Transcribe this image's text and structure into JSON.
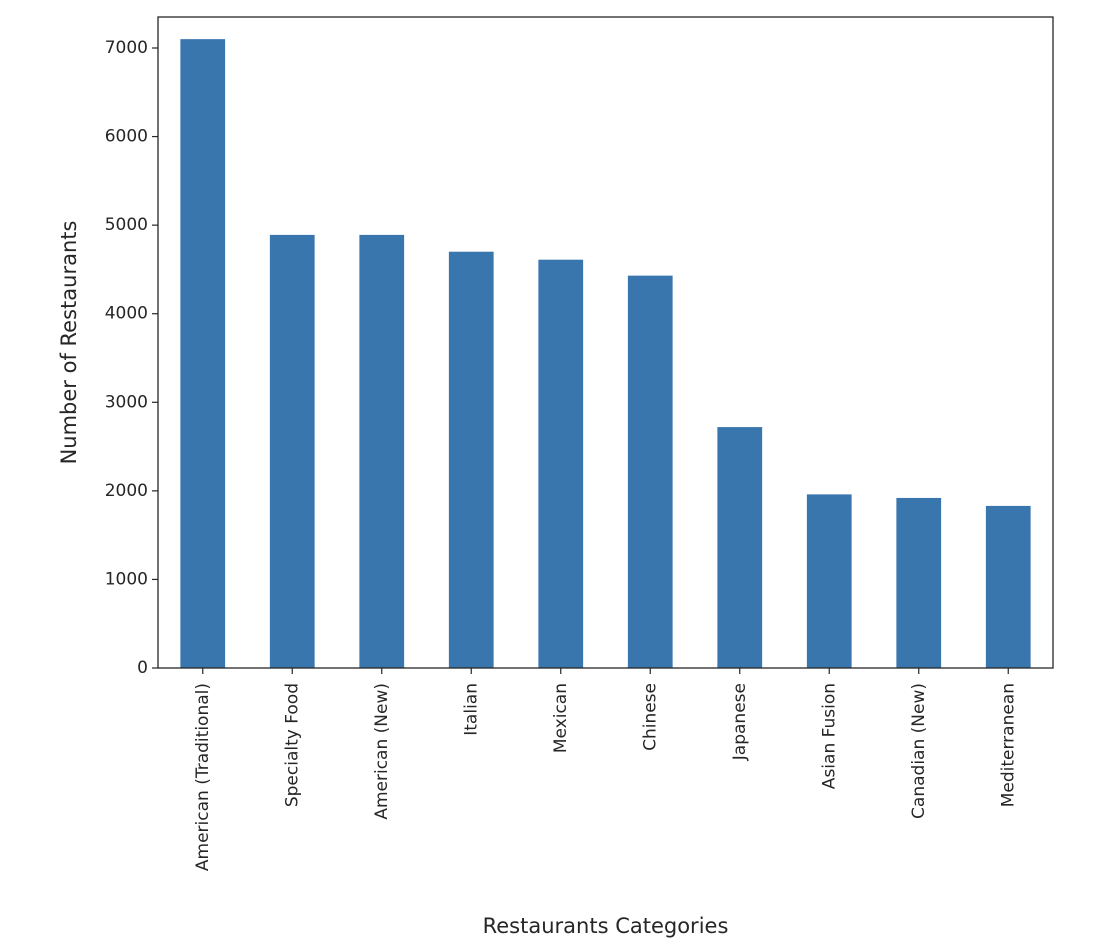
{
  "chart_data": {
    "type": "bar",
    "title": "",
    "xlabel": "Restaurants Categories",
    "ylabel": "Number of Restaurants",
    "categories": [
      "American (Traditional)",
      "Specialty Food",
      "American (New)",
      "Italian",
      "Mexican",
      "Chinese",
      "Japanese",
      "Asian Fusion",
      "Canadian (New)",
      "Mediterranean"
    ],
    "values": [
      7100,
      4890,
      4890,
      4700,
      4610,
      4430,
      2720,
      1960,
      1920,
      1830
    ],
    "ylim": [
      0,
      7350
    ],
    "yticks": [
      0,
      1000,
      2000,
      3000,
      4000,
      5000,
      6000,
      7000
    ],
    "bar_color": "#3a76ae",
    "grid": false,
    "legend": "none"
  }
}
